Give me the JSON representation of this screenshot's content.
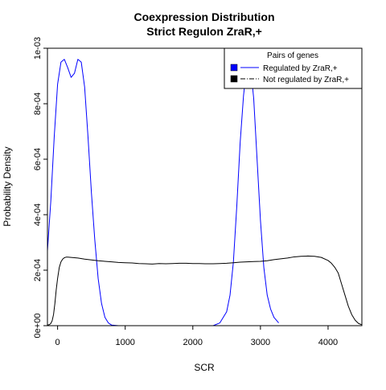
{
  "chart_data": {
    "type": "line",
    "title": "Coexpression Distribution",
    "subtitle": "Strict Regulon ZraR,+",
    "xlabel": "SCR",
    "ylabel": "Probability Density",
    "xlim": [
      -150,
      4500
    ],
    "ylim": [
      0,
      0.001
    ],
    "x_ticks": [
      0,
      1000,
      2000,
      3000,
      4000
    ],
    "x_tick_labels": [
      "0",
      "1000",
      "2000",
      "3000",
      "4000"
    ],
    "y_ticks": [
      0,
      0.0002,
      0.0004,
      0.0006,
      0.0008,
      0.001
    ],
    "y_tick_labels": [
      "0e+00",
      "2e-04",
      "4e-04",
      "6e-04",
      "8e-04",
      "1e-03"
    ],
    "grid": false,
    "legend": {
      "title": "Pairs of genes",
      "placement": "top-right",
      "entries": [
        {
          "label": "Regulated by  ZraR,+",
          "color": "#0000ff",
          "line": "solid"
        },
        {
          "label": "Not regulated by  ZraR,+",
          "color": "#000000",
          "line": "dashdot"
        }
      ]
    },
    "series": [
      {
        "name": "Regulated by  ZraR,+",
        "color": "#0000ff",
        "x": [
          -150,
          -100,
          -50,
          0,
          50,
          100,
          150,
          200,
          250,
          300,
          350,
          400,
          450,
          500,
          550,
          600,
          650,
          700,
          750,
          800,
          900,
          1000,
          1500,
          2000,
          2300,
          2400,
          2500,
          2550,
          2600,
          2650,
          2700,
          2750,
          2800,
          2850,
          2900,
          2950,
          3000,
          3050,
          3100,
          3150,
          3200,
          3270
        ],
        "y": [
          0.00027,
          0.00045,
          0.00068,
          0.00087,
          0.00095,
          0.00096,
          0.00093,
          0.000895,
          0.00091,
          0.00096,
          0.00095,
          0.00086,
          0.00068,
          0.00048,
          0.00031,
          0.00017,
          8e-05,
          3e-05,
          1e-05,
          2e-06,
          0,
          0,
          0,
          0,
          0,
          1e-05,
          5e-05,
          0.00011,
          0.00023,
          0.00043,
          0.00066,
          0.00083,
          0.00094,
          0.00094,
          0.00082,
          0.0006,
          0.00038,
          0.00021,
          0.00011,
          6e-05,
          3e-05,
          1e-05
        ]
      },
      {
        "name": "Not regulated by  ZraR,+",
        "color": "#000000",
        "x": [
          -150,
          -120,
          -100,
          -80,
          -60,
          -40,
          -20,
          0,
          25,
          50,
          75,
          100,
          125,
          150,
          200,
          300,
          400,
          500,
          600,
          700,
          800,
          900,
          1000,
          1100,
          1200,
          1300,
          1400,
          1500,
          1600,
          1700,
          1800,
          1900,
          2000,
          2100,
          2200,
          2300,
          2400,
          2500,
          2600,
          2700,
          2800,
          2900,
          3000,
          3100,
          3200,
          3300,
          3400,
          3500,
          3600,
          3700,
          3800,
          3900,
          4000,
          4050,
          4100,
          4150,
          4200,
          4250,
          4300,
          4350,
          4400,
          4450,
          4500
        ],
        "y": [
          2e-06,
          4e-06,
          8e-06,
          1.8e-05,
          4e-05,
          8e-05,
          0.00013,
          0.00017,
          0.00021,
          0.00023,
          0.00024,
          0.000245,
          0.000247,
          0.000247,
          0.000246,
          0.000244,
          0.00024,
          0.000237,
          0.000234,
          0.000232,
          0.00023,
          0.000228,
          0.000227,
          0.000226,
          0.000224,
          0.000223,
          0.000222,
          0.000224,
          0.000223,
          0.000224,
          0.000225,
          0.000225,
          0.000224,
          0.000224,
          0.000223,
          0.000223,
          0.000224,
          0.000225,
          0.000227,
          0.000229,
          0.00023,
          0.000231,
          0.000232,
          0.000234,
          0.000238,
          0.000241,
          0.000244,
          0.000248,
          0.00025,
          0.000251,
          0.00025,
          0.000246,
          0.000235,
          0.000225,
          0.00021,
          0.00019,
          0.00015,
          0.00011,
          7e-05,
          4e-05,
          2e-05,
          8e-06,
          3e-06
        ]
      }
    ]
  }
}
